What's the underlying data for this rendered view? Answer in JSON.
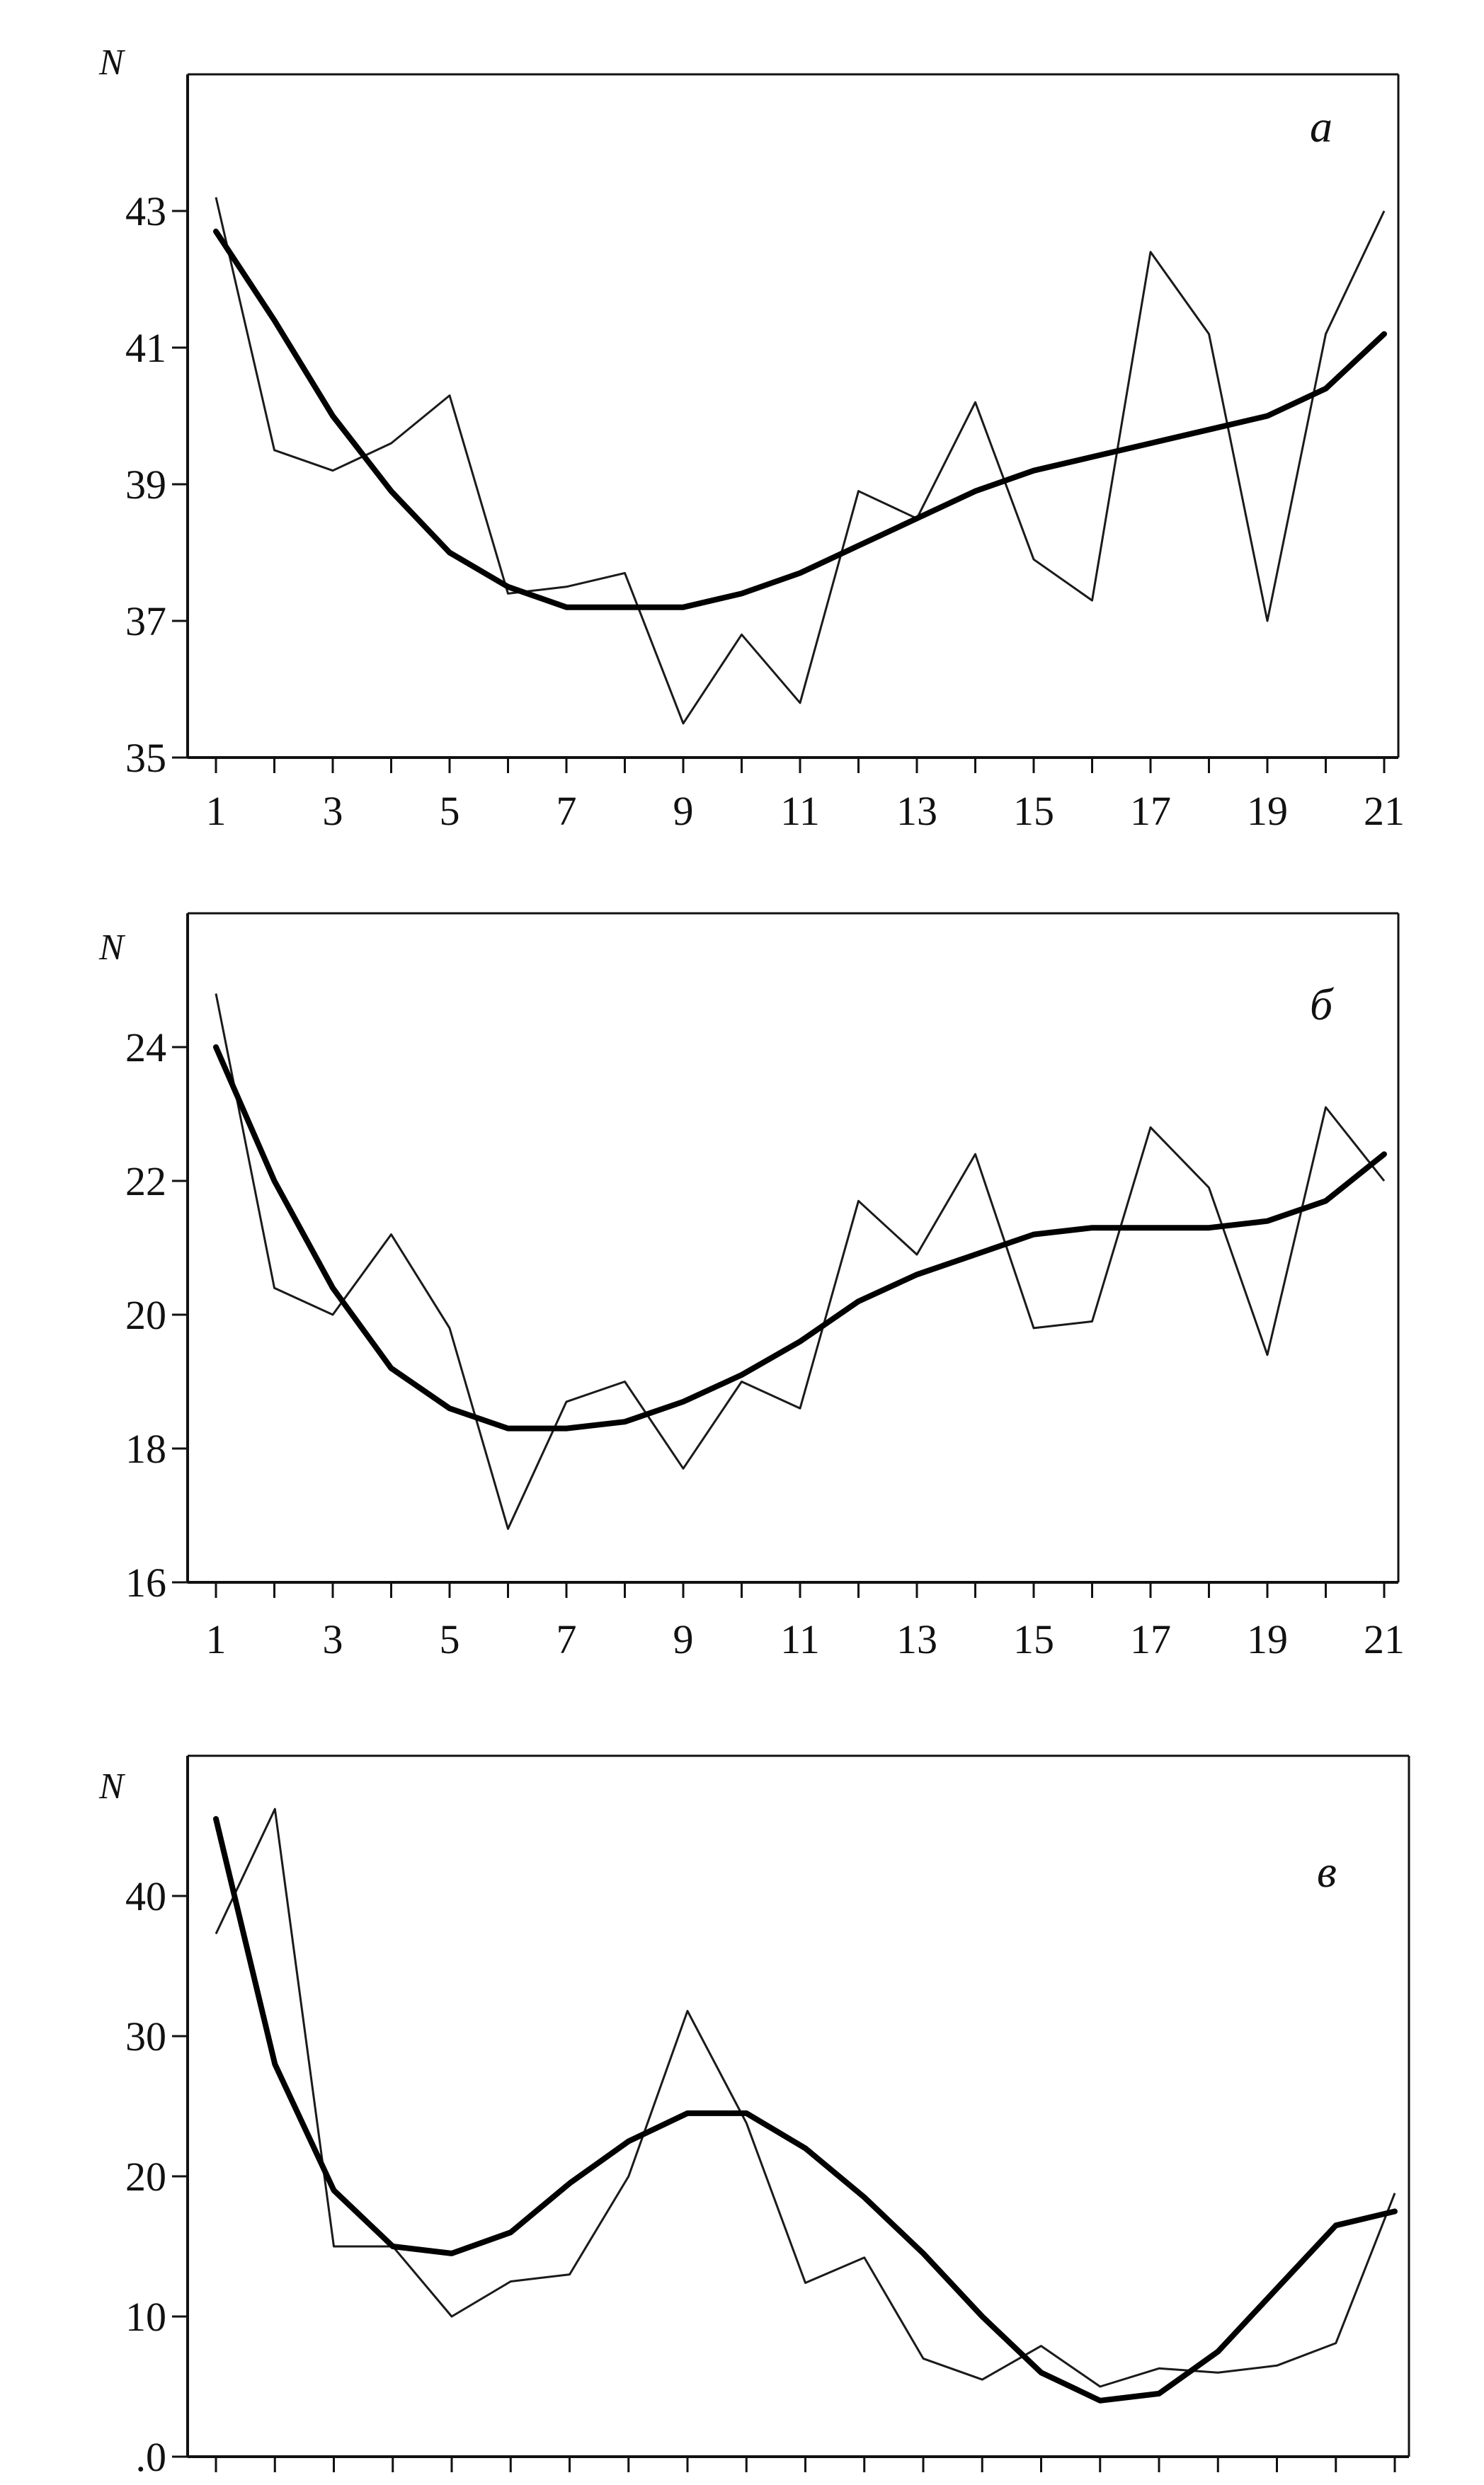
{
  "chart_data": [
    {
      "type": "line",
      "panel_label": "а",
      "ylabel": "N",
      "xlabel": "",
      "ylim": [
        35,
        45
      ],
      "yticks": [
        35,
        37,
        39,
        41,
        43
      ],
      "xlim": [
        1,
        21
      ],
      "xticks": [
        1,
        3,
        5,
        7,
        9,
        11,
        13,
        15,
        17,
        19,
        21
      ],
      "series": [
        {
          "style": "thin",
          "x": [
            1,
            2,
            3,
            4,
            5,
            6,
            7,
            8,
            9,
            10,
            11,
            12,
            13,
            14,
            15,
            16,
            17,
            18,
            19,
            20,
            21
          ],
          "y": [
            43.2,
            39.5,
            39.2,
            39.6,
            40.3,
            37.4,
            37.5,
            37.7,
            35.5,
            36.8,
            35.8,
            38.9,
            38.5,
            40.2,
            37.9,
            37.3,
            42.4,
            41.2,
            37.0,
            41.2,
            43.0
          ]
        },
        {
          "style": "thick",
          "x": [
            1,
            2,
            3,
            4,
            5,
            6,
            7,
            8,
            9,
            10,
            11,
            12,
            13,
            14,
            15,
            16,
            17,
            18,
            19,
            20,
            21
          ],
          "y": [
            42.7,
            41.4,
            40.0,
            38.9,
            38.0,
            37.5,
            37.2,
            37.2,
            37.2,
            37.4,
            37.7,
            38.1,
            38.5,
            38.9,
            39.2,
            39.4,
            39.6,
            39.8,
            40.0,
            40.4,
            41.2
          ]
        }
      ]
    },
    {
      "type": "line",
      "panel_label": "б",
      "ylabel": "N",
      "xlabel": "",
      "ylim": [
        16,
        26
      ],
      "yticks": [
        16,
        18,
        20,
        22,
        24
      ],
      "xlim": [
        1,
        21
      ],
      "xticks": [
        1,
        3,
        5,
        7,
        9,
        11,
        13,
        15,
        17,
        19,
        21
      ],
      "series": [
        {
          "style": "thin",
          "x": [
            1,
            2,
            3,
            4,
            5,
            6,
            7,
            8,
            9,
            10,
            11,
            12,
            13,
            14,
            15,
            16,
            17,
            18,
            19,
            20,
            21
          ],
          "y": [
            24.8,
            20.4,
            20.0,
            21.2,
            19.8,
            16.8,
            18.7,
            19.0,
            17.7,
            19.0,
            18.6,
            21.7,
            20.9,
            22.4,
            19.8,
            19.9,
            22.8,
            21.9,
            19.4,
            23.1,
            22.0
          ]
        },
        {
          "style": "thick",
          "x": [
            1,
            2,
            3,
            4,
            5,
            6,
            7,
            8,
            9,
            10,
            11,
            12,
            13,
            14,
            15,
            16,
            17,
            18,
            19,
            20,
            21
          ],
          "y": [
            24.0,
            22.0,
            20.4,
            19.2,
            18.6,
            18.3,
            18.3,
            18.4,
            18.7,
            19.1,
            19.6,
            20.2,
            20.6,
            20.9,
            21.2,
            21.3,
            21.3,
            21.3,
            21.4,
            21.7,
            22.4
          ]
        }
      ]
    },
    {
      "type": "line",
      "panel_label": "в",
      "ylabel": "N",
      "xlabel": "",
      "ylim": [
        0,
        50
      ],
      "yticks": [
        ".0",
        "10",
        "20",
        "30",
        "40"
      ],
      "ytick_values": [
        0,
        10,
        20,
        30,
        40
      ],
      "xlim": [
        1,
        21
      ],
      "xticks": [
        1,
        3,
        5,
        7,
        9,
        11,
        13,
        15,
        17,
        19,
        21
      ],
      "series": [
        {
          "style": "thin",
          "x": [
            1,
            2,
            3,
            4,
            5,
            6,
            7,
            8,
            9,
            10,
            11,
            12,
            13,
            14,
            15,
            16,
            17,
            18,
            19,
            20,
            21
          ],
          "y": [
            37.3,
            46.2,
            15.0,
            15.0,
            10.0,
            12.5,
            13.0,
            20.0,
            31.8,
            23.8,
            12.4,
            14.2,
            7.0,
            5.5,
            7.9,
            5.0,
            6.3,
            6.0,
            6.5,
            8.1,
            18.8
          ]
        },
        {
          "style": "thick",
          "x": [
            1,
            2,
            3,
            4,
            5,
            6,
            7,
            8,
            9,
            10,
            11,
            12,
            13,
            14,
            15,
            16,
            17,
            18,
            19,
            20,
            21
          ],
          "y": [
            45.5,
            28.0,
            19.0,
            15.0,
            14.5,
            16.0,
            19.5,
            22.5,
            24.5,
            24.5,
            22.0,
            18.5,
            14.5,
            10.0,
            6.0,
            4.0,
            4.5,
            7.5,
            12.0,
            16.5,
            17.5
          ]
        }
      ]
    }
  ]
}
